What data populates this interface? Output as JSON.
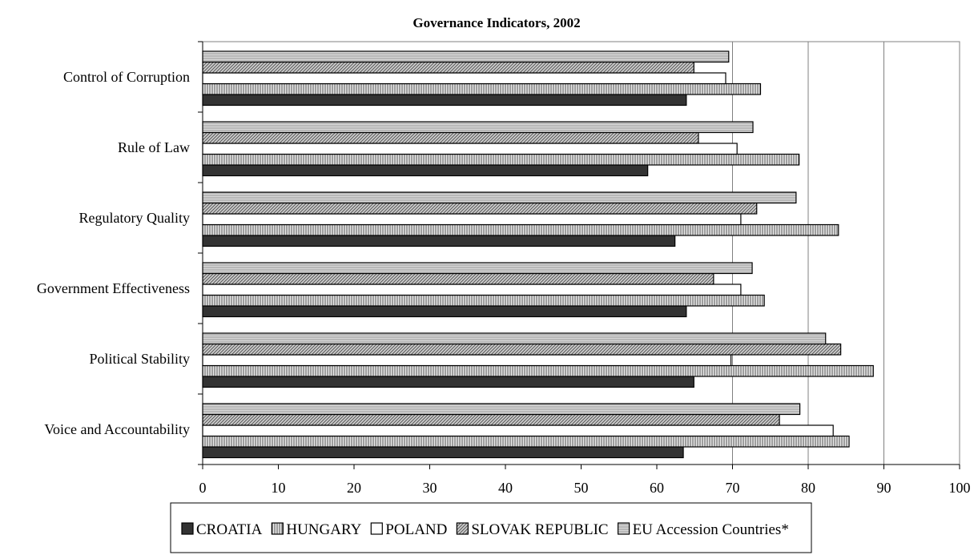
{
  "chart_data": {
    "type": "bar",
    "orientation": "horizontal",
    "title": "Governance Indicators, 2002",
    "categories": [
      "Control of Corruption",
      "Rule of Law",
      "Regulatory Quality",
      "Government Effectiveness",
      "Political Stability",
      "Voice and Accountability"
    ],
    "series": [
      {
        "name": "CROATIA",
        "fill": "#333333",
        "pattern": "solid",
        "values": [
          63.9,
          58.8,
          62.4,
          63.9,
          64.9,
          63.5
        ]
      },
      {
        "name": "HUNGARY",
        "fill": "#d9d9d9",
        "pattern": "vertical-lines",
        "values": [
          73.7,
          78.8,
          84.0,
          74.2,
          88.6,
          85.4
        ]
      },
      {
        "name": "POLAND",
        "fill": "#ffffff",
        "pattern": "none",
        "values": [
          69.1,
          70.6,
          71.1,
          71.1,
          69.8,
          83.3
        ]
      },
      {
        "name": "SLOVAK REPUBLIC",
        "fill": "#bdbdbd",
        "pattern": "diagonal-lines",
        "values": [
          64.9,
          65.5,
          73.2,
          67.5,
          84.3,
          76.2
        ]
      },
      {
        "name": "EU Accession Countries*",
        "fill": "#d4d4d4",
        "pattern": "horizontal-lines",
        "values": [
          69.5,
          72.7,
          78.4,
          72.6,
          82.3,
          78.9
        ]
      }
    ],
    "xlim": [
      0,
      100
    ],
    "xticks": [
      "0",
      "10",
      "20",
      "30",
      "40",
      "50",
      "60",
      "70",
      "80",
      "90",
      "100"
    ],
    "xlabel": "",
    "ylabel": "",
    "grid": "vertical, at 70, 80, 90",
    "legend_position": "bottom"
  }
}
